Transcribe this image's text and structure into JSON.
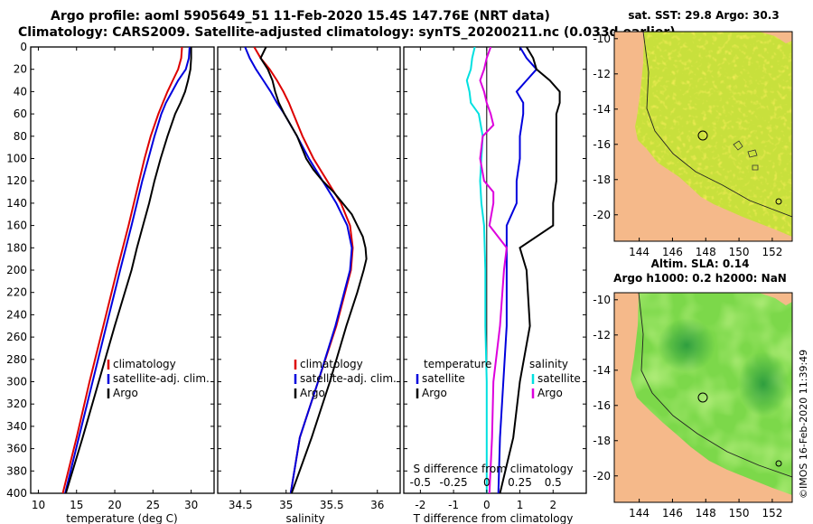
{
  "header": {
    "line1": "Argo profile: aoml 5905649_51 11-Feb-2020 15.4S 147.76E (NRT data)",
    "line2": "Climatology: CARS2009. Satellite-adjusted climatology: synTS_20200211.nc (0.033d earlier)"
  },
  "credit": "©IMOS 16-Feb-2020 11:39:49",
  "colors": {
    "climatology": "#dd0000",
    "satellite": "#0000dd",
    "argo": "#000000",
    "temp_diff": "#00e0e0",
    "sal_diff": "#dd00dd",
    "land": "#f5b98a"
  },
  "chart_data": [
    {
      "type": "line",
      "id": "temperature",
      "xlabel": "temperature (deg C)",
      "ylabel": "depth",
      "xlim": [
        9,
        33
      ],
      "ylim": [
        400,
        0
      ],
      "xticks": [
        10,
        15,
        20,
        25,
        30
      ],
      "yticks": [
        0,
        20,
        40,
        60,
        80,
        100,
        120,
        140,
        160,
        180,
        200,
        220,
        240,
        260,
        280,
        300,
        320,
        340,
        360,
        380,
        400
      ],
      "legend": [
        "climatology",
        "satellite-adj. clim.",
        "Argo"
      ],
      "series": [
        {
          "name": "climatology",
          "depth": [
            0,
            10,
            20,
            30,
            40,
            50,
            60,
            80,
            100,
            120,
            140,
            160,
            200,
            250,
            300,
            350,
            400
          ],
          "values": [
            28.8,
            28.7,
            28.3,
            27.6,
            26.9,
            26.3,
            25.7,
            24.7,
            23.9,
            23.2,
            22.5,
            21.8,
            20.3,
            18.5,
            16.7,
            15.0,
            13.2
          ]
        },
        {
          "name": "satellite-adj. clim.",
          "depth": [
            0,
            10,
            20,
            30,
            40,
            50,
            60,
            80,
            100,
            120,
            140,
            160,
            200,
            250,
            300,
            350,
            400
          ],
          "values": [
            29.8,
            29.7,
            29.3,
            28.3,
            27.5,
            26.7,
            26.1,
            25.2,
            24.4,
            23.6,
            22.9,
            22.2,
            20.7,
            18.9,
            17.1,
            15.3,
            13.5
          ]
        },
        {
          "name": "Argo",
          "depth": [
            0,
            10,
            20,
            30,
            40,
            50,
            60,
            80,
            100,
            120,
            140,
            160,
            180,
            200,
            250,
            300,
            350,
            400
          ],
          "values": [
            30.0,
            30.0,
            29.9,
            29.6,
            29.2,
            28.6,
            27.9,
            26.9,
            26.0,
            25.2,
            24.5,
            23.7,
            22.9,
            22.2,
            20.0,
            17.9,
            15.8,
            13.6
          ]
        }
      ]
    },
    {
      "type": "line",
      "id": "salinity",
      "xlabel": "salinity",
      "ylabel": "depth",
      "xlim": [
        34.25,
        36.25
      ],
      "ylim": [
        400,
        0
      ],
      "xticks": [
        34.5,
        35,
        35.5,
        36
      ],
      "xtick_labels": [
        "34.5",
        "35",
        "35.5",
        "36"
      ],
      "legend": [
        "climatology",
        "satellite-adj. clim.",
        "Argo"
      ],
      "series": [
        {
          "name": "climatology",
          "depth": [
            0,
            10,
            20,
            30,
            40,
            50,
            60,
            80,
            100,
            120,
            140,
            160,
            180,
            200,
            250,
            300,
            350,
            400
          ],
          "values": [
            34.65,
            34.72,
            34.82,
            34.9,
            34.97,
            35.03,
            35.08,
            35.18,
            35.3,
            35.45,
            35.6,
            35.7,
            35.73,
            35.71,
            35.55,
            35.35,
            35.15,
            35.05
          ]
        },
        {
          "name": "satellite-adj. clim.",
          "depth": [
            0,
            10,
            20,
            30,
            40,
            50,
            60,
            80,
            100,
            120,
            140,
            160,
            180,
            200,
            250,
            300,
            350,
            400
          ],
          "values": [
            34.55,
            34.6,
            34.67,
            34.75,
            34.83,
            34.9,
            34.98,
            35.12,
            35.25,
            35.4,
            35.55,
            35.67,
            35.72,
            35.7,
            35.54,
            35.35,
            35.15,
            35.05
          ]
        },
        {
          "name": "Argo",
          "depth": [
            0,
            10,
            20,
            30,
            40,
            50,
            60,
            80,
            100,
            110,
            120,
            130,
            140,
            150,
            160,
            170,
            180,
            190,
            200,
            220,
            250,
            300,
            350,
            400
          ],
          "values": [
            34.78,
            34.72,
            34.8,
            34.85,
            34.88,
            34.92,
            34.98,
            35.12,
            35.22,
            35.3,
            35.4,
            35.52,
            35.62,
            35.72,
            35.78,
            35.84,
            35.87,
            35.88,
            35.85,
            35.78,
            35.66,
            35.48,
            35.28,
            35.06
          ]
        }
      ]
    },
    {
      "type": "line",
      "id": "differences",
      "xlabel": "T difference from climatology",
      "secondary_axis_label": "S difference from climatology",
      "xlim": [
        -2.5,
        3
      ],
      "ylim": [
        400,
        0
      ],
      "xticks": [
        -2,
        -1,
        0,
        1,
        2
      ],
      "s_xticks": [
        -0.5,
        -0.25,
        0,
        0.25,
        0.5
      ],
      "s_tick_labels": [
        "-0.5",
        "-0.25",
        "0",
        "0.25",
        "0.5"
      ],
      "legend_left_title": "temperature",
      "legend_right_title": "salinity",
      "legend": [
        "satellite",
        "Argo"
      ],
      "series": [
        {
          "name": "temperature satellite",
          "depth": [
            0,
            10,
            20,
            30,
            40,
            50,
            60,
            80,
            100,
            120,
            140,
            160,
            200,
            250,
            300,
            350,
            400
          ],
          "values": [
            1.0,
            1.2,
            1.5,
            1.2,
            0.9,
            1.1,
            1.1,
            1.0,
            1.0,
            0.9,
            0.9,
            0.6,
            0.6,
            0.6,
            0.5,
            0.4,
            0.35
          ]
        },
        {
          "name": "temperature Argo",
          "depth": [
            0,
            10,
            20,
            30,
            40,
            50,
            60,
            80,
            100,
            120,
            140,
            160,
            180,
            200,
            250,
            300,
            350,
            400
          ],
          "values": [
            1.2,
            1.4,
            1.5,
            1.9,
            2.2,
            2.2,
            2.1,
            2.1,
            2.1,
            2.1,
            2.0,
            2.0,
            1.0,
            1.2,
            1.3,
            1.0,
            0.8,
            0.4
          ]
        },
        {
          "name": "salinity satellite",
          "depth": [
            0,
            10,
            20,
            30,
            40,
            50,
            60,
            80,
            100,
            120,
            140,
            160,
            200,
            250,
            300,
            350,
            400
          ],
          "values": [
            -0.09,
            -0.11,
            -0.12,
            -0.15,
            -0.13,
            -0.12,
            -0.06,
            -0.03,
            -0.04,
            -0.05,
            -0.04,
            -0.02,
            -0.01,
            -0.01,
            0.0,
            0.0,
            0.0
          ]
        },
        {
          "name": "salinity Argo",
          "depth": [
            0,
            10,
            20,
            30,
            40,
            50,
            60,
            70,
            80,
            100,
            120,
            130,
            140,
            160,
            180,
            200,
            250,
            300,
            350,
            400
          ],
          "values": [
            0.03,
            0.0,
            -0.02,
            -0.05,
            -0.02,
            0.0,
            0.03,
            0.05,
            -0.03,
            -0.05,
            -0.02,
            0.05,
            0.05,
            0.02,
            0.15,
            0.13,
            0.1,
            0.05,
            0.04,
            0.02
          ]
        }
      ]
    },
    {
      "type": "heatmap",
      "id": "sst_map",
      "title": "sat. SST: 29.8 Argo: 30.3",
      "xlim": [
        142.5,
        153.2
      ],
      "ylim": [
        -21.5,
        -9.6
      ],
      "xticks": [
        144,
        146,
        148,
        150,
        152
      ],
      "yticks": [
        -10,
        -12,
        -14,
        -16,
        -18,
        -20
      ],
      "profile_location": [
        147.76,
        -15.4
      ]
    },
    {
      "type": "heatmap",
      "id": "sla_map",
      "title": "Altim. SLA: 0.14",
      "subtitle": "Argo h1000: 0.2 h2000: NaN",
      "xlim": [
        142.5,
        153.2
      ],
      "ylim": [
        -21.5,
        -9.6
      ],
      "xticks": [
        144,
        146,
        148,
        150,
        152
      ],
      "yticks": [
        -10,
        -12,
        -14,
        -16,
        -18,
        -20
      ],
      "profile_location": [
        147.76,
        -15.4
      ]
    }
  ]
}
